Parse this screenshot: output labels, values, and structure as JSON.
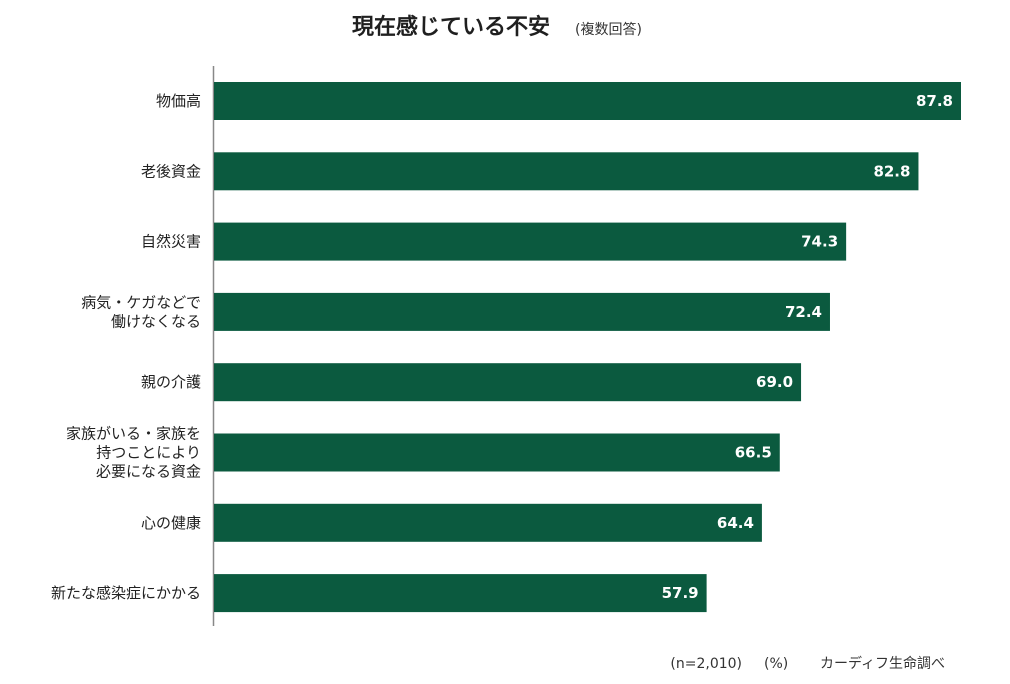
{
  "chart_data": {
    "type": "bar",
    "orientation": "horizontal",
    "title": "現在感じている不安",
    "subtitle": "(複数回答)",
    "categories": [
      "物価高",
      "老後資金",
      "自然災害",
      "病気・ケガなどで働けなくなる",
      "親の介護",
      "家族がいる・家族を持つことにより必要になる資金",
      "心の健康",
      "新たな感染症にかかる"
    ],
    "category_lines": [
      [
        "物価高"
      ],
      [
        "老後資金"
      ],
      [
        "自然災害"
      ],
      [
        "病気・ケガなどで",
        "働けなくなる"
      ],
      [
        "親の介護"
      ],
      [
        "家族がいる・家族を",
        "持つことにより",
        "必要になる資金"
      ],
      [
        "心の健康"
      ],
      [
        "新たな感染症にかかる"
      ]
    ],
    "values": [
      87.8,
      82.8,
      74.3,
      72.4,
      69.0,
      66.5,
      64.4,
      57.9
    ],
    "value_labels": [
      "87.8",
      "82.8",
      "74.3",
      "72.4",
      "69.0",
      "66.5",
      "64.4",
      "57.9"
    ],
    "xlim": [
      0,
      87.8
    ],
    "bar_color": "#0b5a3f",
    "value_label_color": "#ffffff",
    "grid": false
  },
  "footnote": {
    "sample": "(n=2,010)",
    "unit": "(%)",
    "source": "カーディフ生命調べ"
  }
}
